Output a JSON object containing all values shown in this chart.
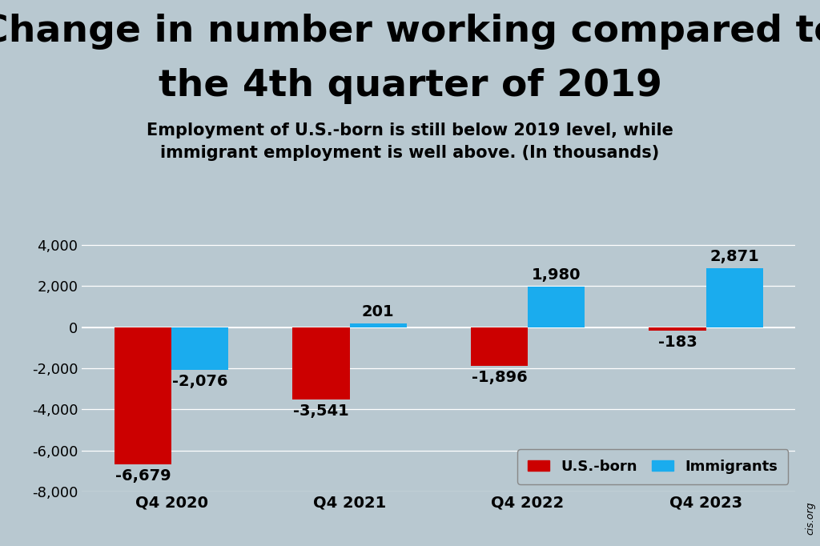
{
  "title_line1": "Change in number working compared to",
  "title_line2": "the 4th quarter of 2019",
  "subtitle": "Employment of U.S.-born is still below 2019 level, while\nimmigrant employment is well above. (In thousands)",
  "categories": [
    "Q4 2020",
    "Q4 2021",
    "Q4 2022",
    "Q4 2023"
  ],
  "us_born": [
    -6679,
    -3541,
    -1896,
    -183
  ],
  "immigrants": [
    -2076,
    201,
    1980,
    2871
  ],
  "us_born_color": "#CC0000",
  "immigrant_color": "#1AACEE",
  "background_color": "#B8C8D0",
  "bar_width": 0.32,
  "ylim": [
    -8000,
    4500
  ],
  "yticks": [
    -8000,
    -6000,
    -4000,
    -2000,
    0,
    2000,
    4000
  ],
  "watermark": "cis.org",
  "legend_label_us": "U.S.-born",
  "legend_label_imm": "Immigrants",
  "title_fontsize": 34,
  "subtitle_fontsize": 15,
  "label_fontsize": 14,
  "tick_fontsize": 13
}
